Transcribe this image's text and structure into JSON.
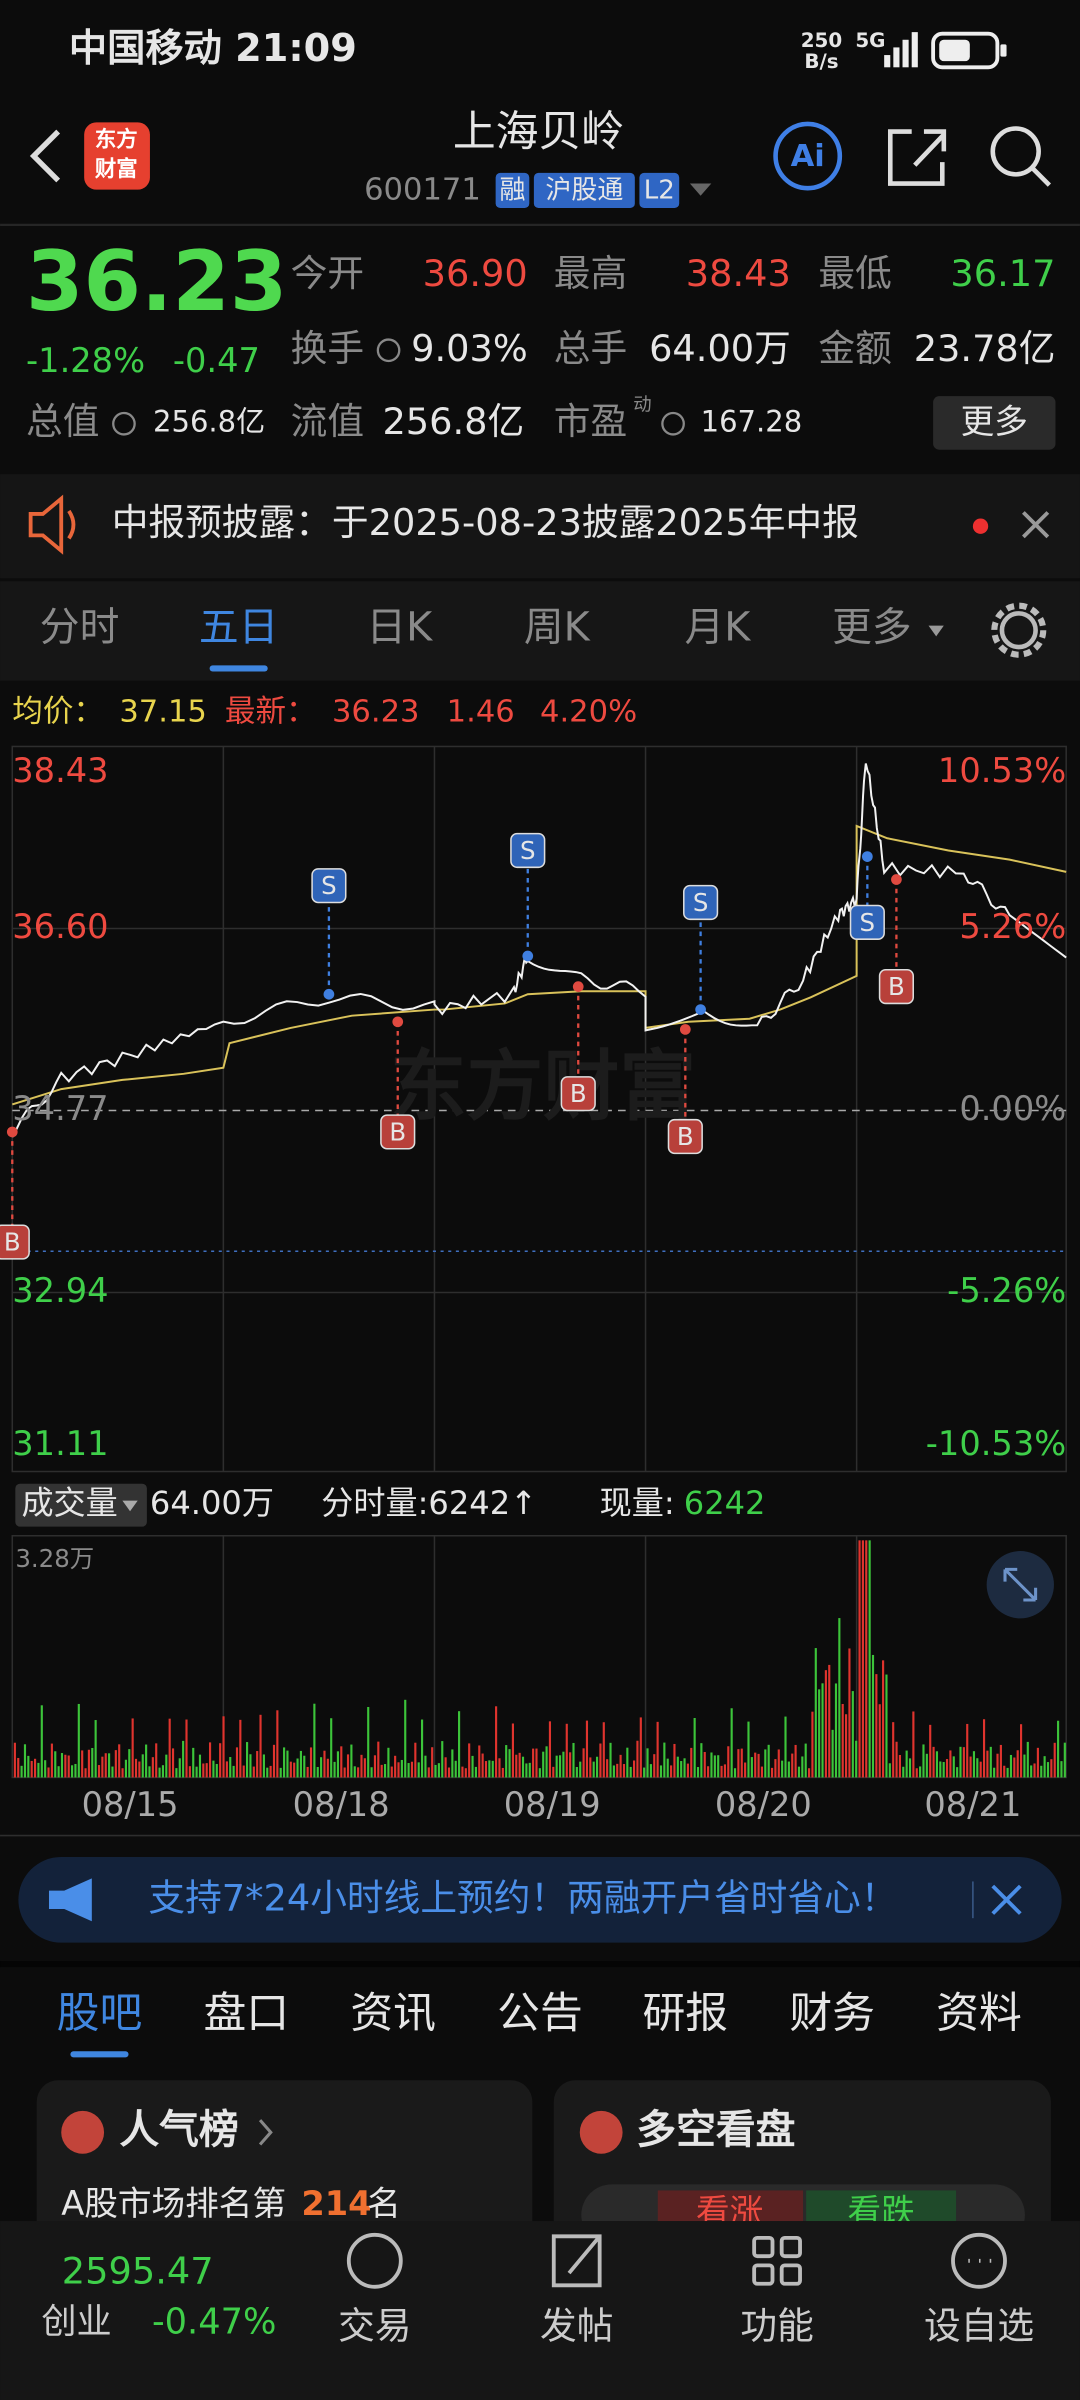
{
  "status_bar": {
    "carrier_time": "中国移动 21:09",
    "speed": "250",
    "speed_unit": "B/s",
    "network": "5G"
  },
  "header": {
    "logo": [
      "东方",
      "财富"
    ],
    "title": "上海贝岭",
    "code": "600171",
    "tags": [
      "融",
      "沪股通",
      "L2"
    ]
  },
  "quote": {
    "price": "36.23",
    "change_pct": "-1.28%",
    "change": "-0.47",
    "fields": [
      {
        "label": "今开",
        "value": "36.90"
      },
      {
        "label": "最高",
        "value": "38.43"
      },
      {
        "label": "最低",
        "value": "36.17"
      },
      {
        "label": "换手",
        "value": "9.03%"
      },
      {
        "label": "总手",
        "value": "64.00万"
      },
      {
        "label": "金额",
        "value": "23.78亿"
      },
      {
        "label": "总值",
        "value": "256.8亿"
      },
      {
        "label": "流值",
        "value": "256.8亿"
      },
      {
        "label": "市盈",
        "sup": "动",
        "value": "167.28"
      }
    ],
    "more": "更多"
  },
  "notice": {
    "text": "中报预披露：于2025-08-23披露2025年中报"
  },
  "tabs": {
    "items": [
      "分时",
      "五日",
      "日K",
      "周K",
      "月K",
      "更多"
    ],
    "active": 1
  },
  "chart": {
    "avg_label": "均价：",
    "avg": "37.15",
    "last_label": "最新：",
    "last": "36.23",
    "change": "1.46",
    "change_pct": "4.20%",
    "left_labels": [
      "38.43",
      "36.60",
      "34.77",
      "32.94",
      "31.11"
    ],
    "right_labels": [
      "10.53%",
      "5.26%",
      "0.00%",
      "-5.26%",
      "-10.53%"
    ],
    "watermark": "东方财富",
    "markers": [
      "B",
      "S",
      "B",
      "S",
      "B",
      "S",
      "B",
      "S",
      "B"
    ],
    "x_labels": [
      "08/15",
      "08/18",
      "08/19",
      "08/20",
      "08/21"
    ]
  },
  "volume": {
    "label": "成交量",
    "total": "64.00万",
    "tick_volume": "分时量:6242↑",
    "current_label": "现量:",
    "current": "6242",
    "max": "3.28万"
  },
  "banner": {
    "text": "支持7*24小时线上预约！两融开户省时省心！"
  },
  "section_tabs": {
    "items": [
      "股吧",
      "盘口",
      "资讯",
      "公告",
      "研报",
      "财务",
      "资料"
    ],
    "active": 0
  },
  "cards": {
    "popularity": {
      "title": "人气榜",
      "text": "A股市场排名第",
      "rank": "214",
      "suffix": "名"
    },
    "sentiment": {
      "title": "多空看盘",
      "bull": "看涨",
      "bear": "看跌"
    }
  },
  "nav": {
    "index_value": "2595.47",
    "index_name": "创业",
    "index_change": "-0.47%",
    "items": [
      "交易",
      "发帖",
      "功能",
      "设自选"
    ]
  }
}
